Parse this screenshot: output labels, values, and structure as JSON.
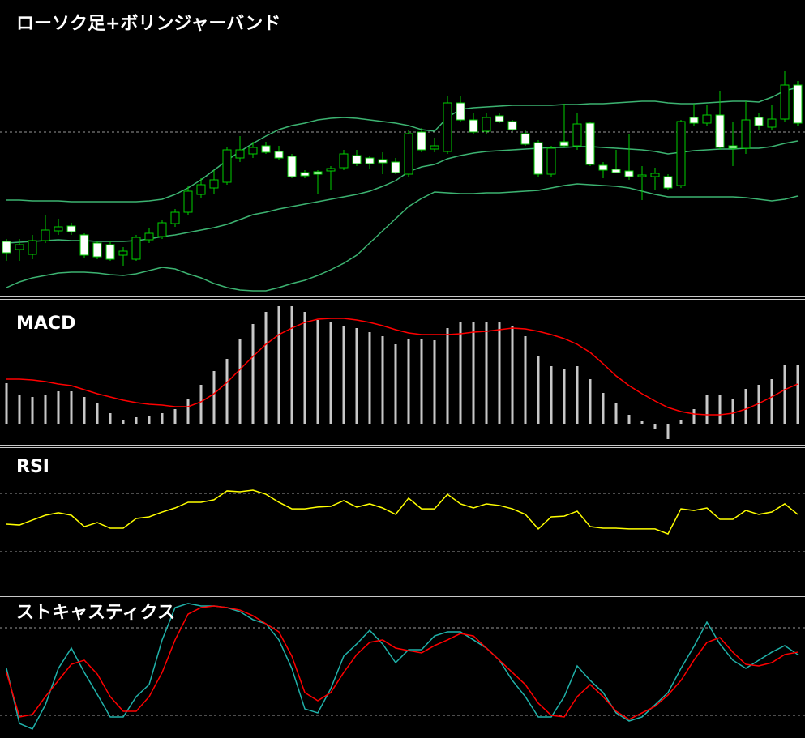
{
  "chart_data": [
    {
      "type": "candlestick",
      "title": "ローソク足+ボリンジャーバンド",
      "open": [
        102,
        92,
        86,
        103,
        115,
        121,
        110,
        100,
        98,
        85,
        80,
        104,
        108,
        124,
        138,
        160,
        168,
        175,
        205,
        210,
        220,
        213,
        207,
        187,
        188,
        189,
        193,
        208,
        205,
        203,
        200,
        185,
        237,
        216,
        213,
        273,
        252,
        238,
        257,
        250,
        235,
        224,
        185,
        225,
        220,
        248,
        196,
        191,
        189,
        182,
        182,
        182,
        171,
        255,
        248,
        258,
        220,
        217,
        255,
        243,
        253,
        295
      ],
      "high": [
        105,
        105,
        110,
        135,
        130,
        125,
        112,
        103,
        102,
        95,
        110,
        118,
        128,
        142,
        170,
        180,
        190,
        218,
        232,
        225,
        225,
        220,
        210,
        190,
        190,
        195,
        215,
        215,
        208,
        212,
        205,
        240,
        242,
        230,
        282,
        282,
        260,
        260,
        260,
        252,
        240,
        227,
        220,
        272,
        260,
        250,
        200,
        215,
        235,
        195,
        193,
        185,
        252,
        272,
        270,
        288,
        250,
        275,
        260,
        270,
        312,
        300
      ],
      "low": [
        78,
        78,
        80,
        100,
        110,
        110,
        82,
        80,
        78,
        72,
        78,
        100,
        105,
        120,
        135,
        155,
        160,
        172,
        200,
        205,
        210,
        202,
        180,
        180,
        160,
        165,
        190,
        195,
        192,
        185,
        185,
        182,
        212,
        212,
        210,
        250,
        234,
        235,
        248,
        238,
        220,
        182,
        182,
        218,
        215,
        195,
        180,
        187,
        178,
        153,
        165,
        165,
        168,
        245,
        245,
        215,
        195,
        210,
        240,
        240,
        250,
        245
      ],
      "close": [
        88,
        98,
        103,
        116,
        120,
        114,
        85,
        83,
        80,
        90,
        107,
        112,
        125,
        138,
        164,
        172,
        178,
        215,
        215,
        218,
        212,
        205,
        182,
        183,
        185,
        192,
        210,
        198,
        198,
        199,
        187,
        235,
        215,
        220,
        273,
        252,
        237,
        255,
        250,
        240,
        222,
        185,
        217,
        220,
        247,
        197,
        190,
        187,
        182,
        184,
        186,
        168,
        250,
        248,
        258,
        218,
        217,
        252,
        245,
        253,
        295,
        248
      ],
      "up_color": "#000000",
      "down_color": "#ffffff",
      "wick_color": "#00d000",
      "series": [
        {
          "color": "#3cb371",
          "values": [
            153,
            153,
            152,
            152,
            152,
            151,
            151,
            151,
            151,
            151,
            151,
            152,
            154,
            160,
            168,
            178,
            190,
            202,
            213,
            223,
            232,
            240,
            245,
            248,
            252,
            254,
            255,
            254,
            252,
            250,
            248,
            245,
            240,
            238,
            255,
            265,
            267,
            268,
            269,
            270,
            270,
            270,
            270,
            271,
            271,
            272,
            272,
            273,
            274,
            275,
            275,
            273,
            272,
            272,
            273,
            274,
            275,
            275,
            274,
            280,
            288,
            292
          ]
        },
        {
          "color": "#3cb371",
          "values": [
            100,
            101,
            102,
            103,
            104,
            103,
            103,
            102,
            102,
            102,
            103,
            105,
            108,
            110,
            113,
            116,
            119,
            123,
            129,
            135,
            138,
            142,
            145,
            148,
            151,
            154,
            157,
            160,
            164,
            170,
            177,
            188,
            194,
            197,
            204,
            208,
            211,
            213,
            214,
            215,
            216,
            217,
            218,
            218,
            219,
            219,
            218,
            217,
            216,
            215,
            213,
            210,
            212,
            214,
            215,
            216,
            216,
            217,
            217,
            219,
            223,
            226
          ]
        },
        {
          "color": "#3cb371",
          "values": [
            45,
            52,
            57,
            60,
            63,
            64,
            64,
            63,
            61,
            60,
            62,
            66,
            70,
            68,
            62,
            57,
            50,
            45,
            42,
            41,
            41,
            45,
            50,
            54,
            60,
            67,
            75,
            85,
            100,
            115,
            130,
            145,
            155,
            163,
            162,
            161,
            161,
            162,
            162,
            163,
            164,
            165,
            168,
            171,
            173,
            172,
            171,
            170,
            168,
            164,
            160,
            157,
            157,
            157,
            157,
            157,
            157,
            156,
            154,
            152,
            154,
            158
          ]
        }
      ],
      "ylim": [
        35,
        400
      ],
      "hline": 237
    },
    {
      "type": "bar",
      "title": "MACD",
      "values": [
        50,
        35,
        33,
        36,
        40,
        40,
        33,
        26,
        13,
        5,
        8,
        10,
        13,
        18,
        31,
        48,
        65,
        80,
        105,
        123,
        138,
        145,
        145,
        138,
        128,
        125,
        120,
        118,
        113,
        108,
        98,
        105,
        105,
        103,
        118,
        126,
        126,
        126,
        126,
        120,
        108,
        83,
        71,
        68,
        71,
        55,
        38,
        25,
        11,
        3,
        -7,
        -19,
        5,
        18,
        36,
        35,
        31,
        43,
        48,
        55,
        73,
        73
      ],
      "color": "#c8c8c8",
      "series": [
        {
          "color": "#ff0000",
          "values": [
            55,
            55,
            54,
            52,
            49,
            47,
            42,
            37,
            33,
            29,
            26,
            24,
            23,
            21,
            21,
            27,
            37,
            51,
            67,
            83,
            98,
            110,
            118,
            125,
            129,
            130,
            130,
            128,
            125,
            121,
            116,
            112,
            110,
            110,
            110,
            111,
            113,
            114,
            116,
            118,
            117,
            114,
            110,
            105,
            98,
            88,
            74,
            59,
            47,
            37,
            28,
            20,
            15,
            12,
            11,
            11,
            13,
            18,
            25,
            33,
            42,
            49
          ]
        }
      ],
      "ylim": [
        -25,
        152
      ]
    },
    {
      "type": "line",
      "title": "RSI",
      "series": [
        {
          "color": "#ffff00",
          "values": [
            48.9,
            48.3,
            51.7,
            55,
            56.7,
            55,
            47.2,
            50,
            46.1,
            46.1,
            52.8,
            53.9,
            57.2,
            60,
            63.9,
            63.9,
            65.6,
            71.7,
            71.1,
            72.2,
            69.4,
            63.9,
            59.4,
            59.4,
            60.6,
            61.1,
            65,
            60.6,
            62.8,
            60,
            55.6,
            66.7,
            59.4,
            59.4,
            69.4,
            62.8,
            60,
            62.8,
            61.7,
            59.4,
            55.6,
            45.6,
            53.9,
            54.4,
            57.8,
            47.2,
            46.1,
            46.1,
            45.6,
            45.6,
            45.6,
            42.2,
            59.4,
            58.3,
            60,
            52.2,
            52.2,
            58.3,
            55.6,
            57.2,
            62.8,
            55.6
          ]
        }
      ],
      "ylim": [
        0,
        100
      ],
      "levels": [
        30,
        70
      ]
    },
    {
      "type": "line",
      "title": "ストキャスティクス",
      "series": [
        {
          "color": "#20b2aa",
          "values": [
            52.2,
            14.4,
            10.6,
            27.2,
            52.2,
            66.1,
            49.4,
            34.4,
            18.9,
            18.9,
            32.8,
            41.1,
            71.7,
            93.9,
            96.7,
            95,
            95,
            93.9,
            91.1,
            85.6,
            82.8,
            71.7,
            52.2,
            24.4,
            21.7,
            38.3,
            60.6,
            68.9,
            78.3,
            68.9,
            56.1,
            65,
            65,
            74.4,
            77.2,
            77.2,
            71.7,
            66.1,
            57.8,
            43.9,
            32.8,
            18.9,
            18.9,
            32.8,
            53.9,
            43.9,
            35.6,
            21.7,
            16.1,
            18.9,
            27.2,
            35.6,
            52.2,
            67.2,
            83.9,
            68.9,
            57.8,
            52.2,
            57.8,
            63.3,
            67.8,
            61.7
          ]
        },
        {
          "color": "#ff0000",
          "values": [
            49.4,
            18.9,
            20.6,
            32.8,
            43.9,
            55,
            57.8,
            48.3,
            32.8,
            22.8,
            22.8,
            32.8,
            49.4,
            71.7,
            89.4,
            93.9,
            95,
            93.9,
            92.2,
            88.3,
            82.8,
            77.2,
            60.6,
            35.6,
            30,
            35.6,
            49.4,
            61.7,
            70,
            71.7,
            66.1,
            64.4,
            62.8,
            67.8,
            71.7,
            76.1,
            74.4,
            66.1,
            57.8,
            49.4,
            41.1,
            28.3,
            20,
            18.9,
            32.8,
            41.1,
            32.8,
            22.8,
            17.2,
            21.7,
            26.1,
            33.9,
            43.9,
            57.8,
            70,
            73.3,
            63.3,
            55,
            53.9,
            56.1,
            61.7,
            63.3
          ]
        }
      ],
      "ylim": [
        0,
        100
      ],
      "levels": [
        20,
        80
      ]
    }
  ]
}
